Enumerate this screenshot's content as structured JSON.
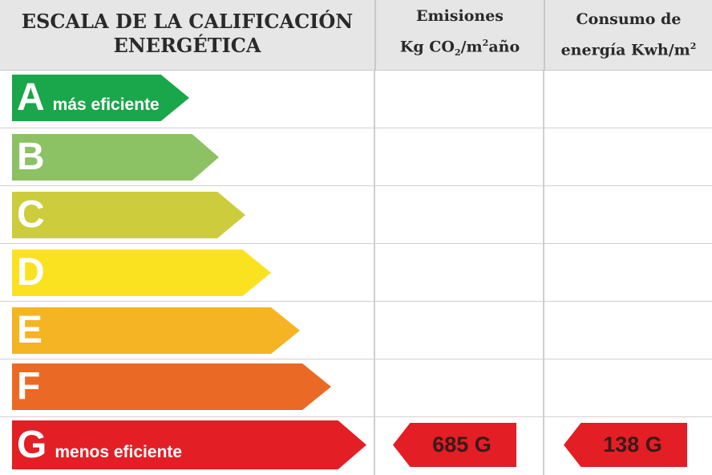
{
  "header": {
    "scale_title_line1": "ESCALA DE LA CALIFICACIÓN",
    "scale_title_line2": "ENERGÉTICA",
    "emissions_line1": "Emisiones",
    "emissions_unit_prefix": "Kg CO",
    "emissions_unit_sub": "2",
    "emissions_unit_mid": "/m",
    "emissions_unit_sup": "2",
    "emissions_unit_suffix": "año",
    "consumption_line1": "Consumo de",
    "consumption_unit_prefix": "energía Kwh/m",
    "consumption_unit_sup": "2"
  },
  "ratings": [
    {
      "letter": "A",
      "note": "más eficiente",
      "color": "#1aa64a"
    },
    {
      "letter": "B",
      "note": "",
      "color": "#8cc164"
    },
    {
      "letter": "C",
      "note": "",
      "color": "#cccc3c"
    },
    {
      "letter": "D",
      "note": "",
      "color": "#fae221"
    },
    {
      "letter": "E",
      "note": "",
      "color": "#f4b423"
    },
    {
      "letter": "F",
      "note": "",
      "color": "#ea6a25"
    },
    {
      "letter": "G",
      "note": "menos eficiente",
      "color": "#e31e24"
    }
  ],
  "result": {
    "emissions": "685 G",
    "consumption": "138 G",
    "tag_color": "#e31e24"
  }
}
